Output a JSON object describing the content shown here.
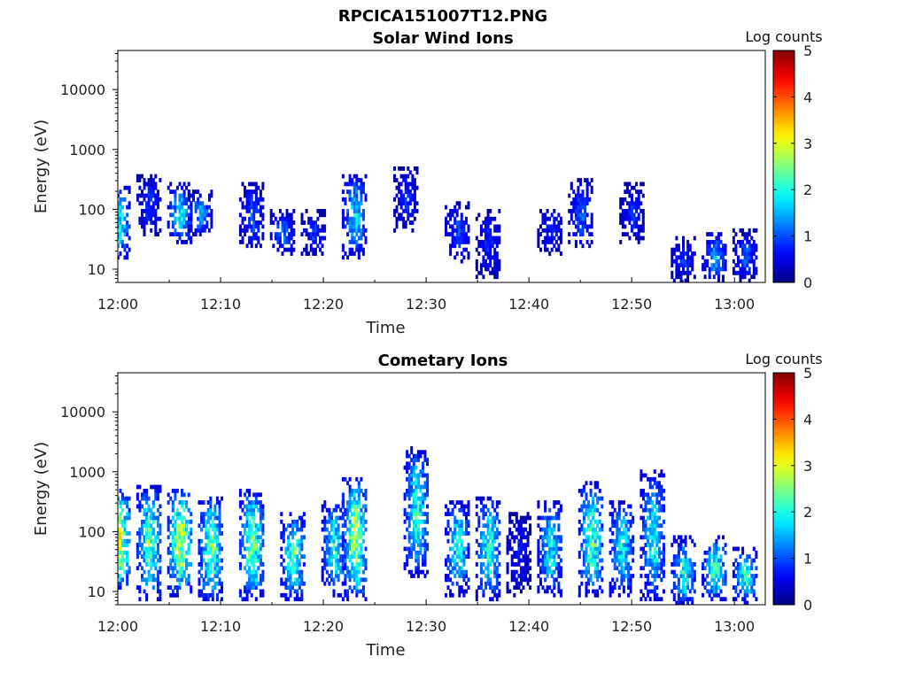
{
  "figure": {
    "title": "RPCICA151007T12.PNG"
  },
  "chart_data": [
    {
      "type": "heatmap",
      "title": "Solar Wind Ions",
      "xlabel": "Time",
      "ylabel": "Energy (eV)",
      "x_ticks": [
        "12:00",
        "12:10",
        "12:20",
        "12:30",
        "12:40",
        "12:50",
        "13:00"
      ],
      "x_range": [
        "12:00",
        "13:03"
      ],
      "y_scale": "log",
      "y_ticks": [
        10,
        100,
        1000,
        10000
      ],
      "y_range": [
        6,
        45000
      ],
      "colorbar": {
        "label": "Log counts",
        "ticks": [
          0,
          1,
          2,
          3,
          4,
          5
        ],
        "range": [
          0,
          5
        ],
        "colormap": "jet"
      },
      "bursts": [
        {
          "t": "12:00",
          "emin": 18,
          "emax": 180,
          "peak": 2.2
        },
        {
          "t": "12:03",
          "emin": 40,
          "emax": 280,
          "peak": 1.0
        },
        {
          "t": "12:06",
          "emin": 30,
          "emax": 200,
          "peak": 2.0
        },
        {
          "t": "12:08",
          "emin": 40,
          "emax": 150,
          "peak": 1.6
        },
        {
          "t": "12:13",
          "emin": 25,
          "emax": 200,
          "peak": 1.2
        },
        {
          "t": "12:16",
          "emin": 20,
          "emax": 70,
          "peak": 1.3
        },
        {
          "t": "12:19",
          "emin": 20,
          "emax": 70,
          "peak": 1.0
        },
        {
          "t": "12:23",
          "emin": 18,
          "emax": 300,
          "peak": 1.9
        },
        {
          "t": "12:28",
          "emin": 50,
          "emax": 400,
          "peak": 0.9
        },
        {
          "t": "12:33",
          "emin": 15,
          "emax": 100,
          "peak": 1.1
        },
        {
          "t": "12:36",
          "emin": 8,
          "emax": 80,
          "peak": 0.9
        },
        {
          "t": "12:42",
          "emin": 20,
          "emax": 80,
          "peak": 0.9
        },
        {
          "t": "12:45",
          "emin": 25,
          "emax": 250,
          "peak": 1.2
        },
        {
          "t": "12:50",
          "emin": 30,
          "emax": 200,
          "peak": 0.9
        },
        {
          "t": "12:55",
          "emin": 7,
          "emax": 25,
          "peak": 1.0
        },
        {
          "t": "12:58",
          "emin": 7,
          "emax": 30,
          "peak": 1.6
        },
        {
          "t": "13:01",
          "emin": 7,
          "emax": 35,
          "peak": 1.2
        }
      ]
    },
    {
      "type": "heatmap",
      "title": "Cometary Ions",
      "xlabel": "Time",
      "ylabel": "Energy (eV)",
      "x_ticks": [
        "12:00",
        "12:10",
        "12:20",
        "12:30",
        "12:40",
        "12:50",
        "13:00"
      ],
      "x_range": [
        "12:00",
        "13:03"
      ],
      "y_scale": "log",
      "y_ticks": [
        10,
        100,
        1000,
        10000
      ],
      "y_range": [
        6,
        45000
      ],
      "colorbar": {
        "label": "Log counts",
        "ticks": [
          0,
          1,
          2,
          3,
          4,
          5
        ],
        "range": [
          0,
          5
        ],
        "colormap": "jet"
      },
      "bursts": [
        {
          "t": "12:00",
          "emin": 12,
          "emax": 400,
          "peak": 3.3
        },
        {
          "t": "12:03",
          "emin": 8,
          "emax": 450,
          "peak": 2.6
        },
        {
          "t": "12:06",
          "emin": 10,
          "emax": 400,
          "peak": 3.2
        },
        {
          "t": "12:09",
          "emin": 8,
          "emax": 300,
          "peak": 2.7
        },
        {
          "t": "12:13",
          "emin": 8,
          "emax": 400,
          "peak": 2.8
        },
        {
          "t": "12:17",
          "emin": 8,
          "emax": 150,
          "peak": 2.6
        },
        {
          "t": "12:21",
          "emin": 10,
          "emax": 250,
          "peak": 2.2
        },
        {
          "t": "12:23",
          "emin": 8,
          "emax": 600,
          "peak": 3.0
        },
        {
          "t": "12:29",
          "emin": 20,
          "emax": 2000,
          "peak": 2.3
        },
        {
          "t": "12:33",
          "emin": 10,
          "emax": 250,
          "peak": 2.2
        },
        {
          "t": "12:36",
          "emin": 8,
          "emax": 300,
          "peak": 2.3
        },
        {
          "t": "12:39",
          "emin": 10,
          "emax": 150,
          "peak": 0.8
        },
        {
          "t": "12:42",
          "emin": 10,
          "emax": 250,
          "peak": 2.1
        },
        {
          "t": "12:46",
          "emin": 10,
          "emax": 500,
          "peak": 2.6
        },
        {
          "t": "12:49",
          "emin": 10,
          "emax": 250,
          "peak": 2.2
        },
        {
          "t": "12:52",
          "emin": 8,
          "emax": 800,
          "peak": 2.1
        },
        {
          "t": "12:55",
          "emin": 6,
          "emax": 60,
          "peak": 2.2
        },
        {
          "t": "12:58",
          "emin": 8,
          "emax": 60,
          "peak": 2.4
        },
        {
          "t": "13:01",
          "emin": 7,
          "emax": 40,
          "peak": 2.3
        }
      ]
    }
  ]
}
